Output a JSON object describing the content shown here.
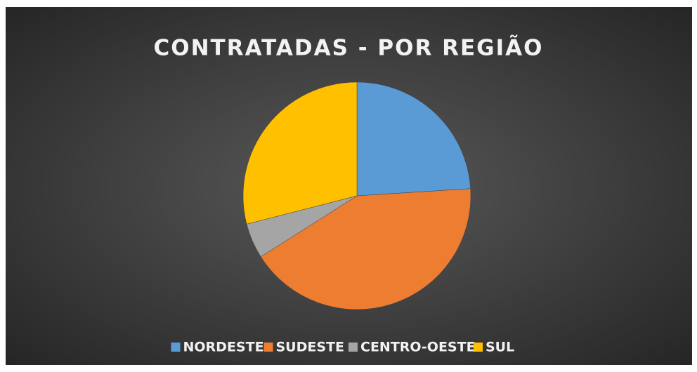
{
  "chart_data": {
    "type": "pie",
    "title": "CONTRATADAS - POR REGIÃO",
    "categories": [
      "NORDESTE",
      "SUDESTE",
      "CENTRO-OESTE",
      "SUL"
    ],
    "values": [
      24,
      42,
      5,
      29
    ],
    "colors": [
      "#5b9bd5",
      "#ed7d31",
      "#a5a5a5",
      "#ffc000"
    ],
    "legend": "bottom"
  }
}
